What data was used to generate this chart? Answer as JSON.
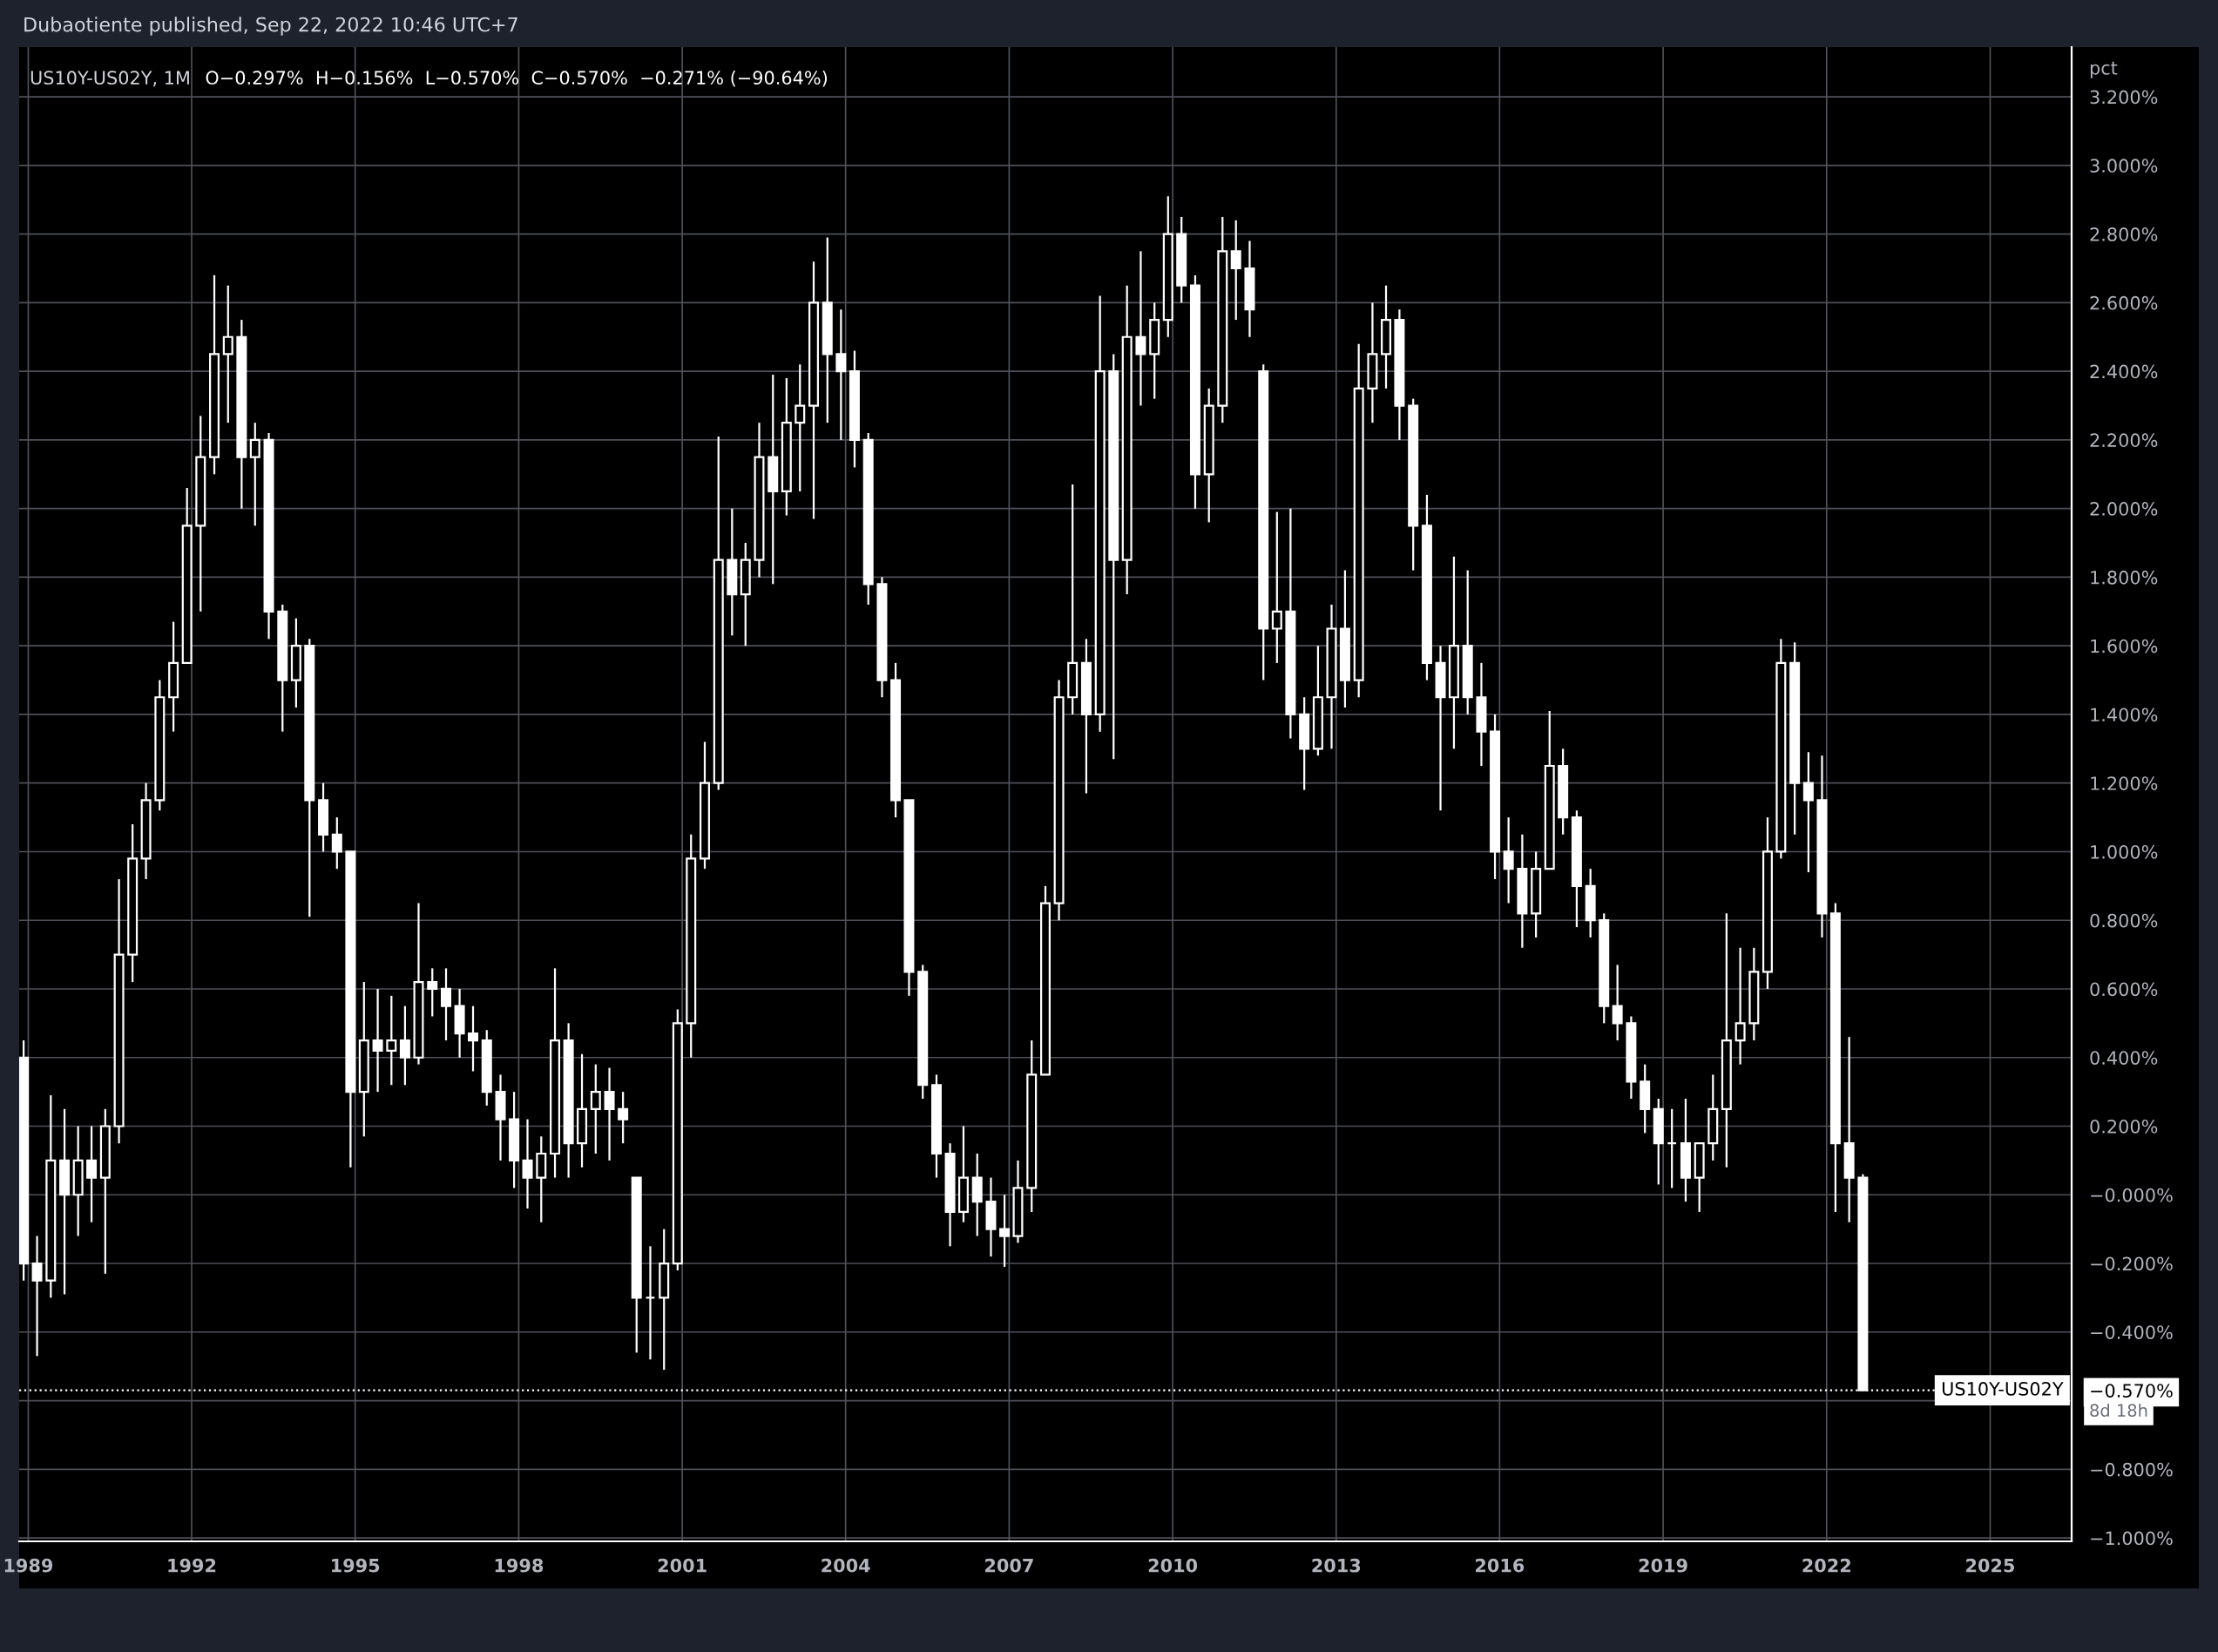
{
  "chart_data": {
    "type": "candlestick",
    "title": "US10Y-US02Y, 1M",
    "subtitle": "O−0.297%  H−0.156%  L−0.570%  C−0.570%  −0.271% (−90.64%)",
    "ylabel": "pct",
    "annotations": [
      "Dubaotiente published, Sep 22, 2022 10:46 UTC+7",
      "8d 18h"
    ],
    "color": "#ffffff",
    "x": [
      "1988-12",
      "1989-03",
      "1989-06",
      "1989-09",
      "1989-12",
      "1990-03",
      "1990-06",
      "1990-09",
      "1990-12",
      "1991-03",
      "1991-06",
      "1991-09",
      "1991-12",
      "1992-03",
      "1992-06",
      "1992-09",
      "1992-12",
      "1993-03",
      "1993-06",
      "1993-09",
      "1993-12",
      "1994-03",
      "1994-06",
      "1994-09",
      "1994-12",
      "1995-03",
      "1995-06",
      "1995-09",
      "1995-12",
      "1996-03",
      "1996-06",
      "1996-09",
      "1996-12",
      "1997-03",
      "1997-06",
      "1997-09",
      "1997-12",
      "1998-03",
      "1998-06",
      "1998-09",
      "1998-12",
      "1999-03",
      "1999-06",
      "1999-09",
      "1999-12",
      "2000-03",
      "2000-06",
      "2000-09",
      "2000-12",
      "2001-03",
      "2001-06",
      "2001-09",
      "2001-12",
      "2002-03",
      "2002-06",
      "2002-09",
      "2002-12",
      "2003-03",
      "2003-06",
      "2003-09",
      "2003-12",
      "2004-03",
      "2004-06",
      "2004-09",
      "2004-12",
      "2005-03",
      "2005-06",
      "2005-09",
      "2005-12",
      "2006-03",
      "2006-06",
      "2006-09",
      "2006-12",
      "2007-03",
      "2007-06",
      "2007-09",
      "2007-12",
      "2008-03",
      "2008-06",
      "2008-09",
      "2008-12",
      "2009-03",
      "2009-06",
      "2009-09",
      "2009-12",
      "2010-03",
      "2010-06",
      "2010-09",
      "2010-12",
      "2011-03",
      "2011-06",
      "2011-09",
      "2011-12",
      "2012-03",
      "2012-06",
      "2012-09",
      "2012-12",
      "2013-03",
      "2013-06",
      "2013-09",
      "2013-12",
      "2014-03",
      "2014-06",
      "2014-09",
      "2014-12",
      "2015-03",
      "2015-06",
      "2015-09",
      "2015-12",
      "2016-03",
      "2016-06",
      "2016-09",
      "2016-12",
      "2017-03",
      "2017-06",
      "2017-09",
      "2017-12",
      "2018-03",
      "2018-06",
      "2018-09",
      "2018-12",
      "2019-03",
      "2019-06",
      "2019-09",
      "2019-12",
      "2020-03",
      "2020-06",
      "2020-09",
      "2020-12",
      "2021-03",
      "2021-06",
      "2021-09",
      "2021-12",
      "2022-03",
      "2022-06",
      "2022-09"
    ],
    "ohlc": [
      [
        0.4,
        0.45,
        -0.25,
        -0.2
      ],
      [
        -0.2,
        -0.12,
        -0.47,
        -0.25
      ],
      [
        -0.25,
        0.29,
        -0.3,
        0.1
      ],
      [
        0.1,
        0.25,
        -0.29,
        0.0
      ],
      [
        0.0,
        0.2,
        -0.12,
        0.1
      ],
      [
        0.1,
        0.2,
        -0.08,
        0.05
      ],
      [
        0.05,
        0.25,
        -0.23,
        0.2
      ],
      [
        0.2,
        0.92,
        0.15,
        0.7
      ],
      [
        0.7,
        1.08,
        0.62,
        0.98
      ],
      [
        0.98,
        1.2,
        0.92,
        1.15
      ],
      [
        1.15,
        1.5,
        1.12,
        1.45
      ],
      [
        1.45,
        1.67,
        1.35,
        1.55
      ],
      [
        1.55,
        2.06,
        1.55,
        1.95
      ],
      [
        1.95,
        2.27,
        1.7,
        2.15
      ],
      [
        2.15,
        2.68,
        2.1,
        2.45
      ],
      [
        2.45,
        2.65,
        2.25,
        2.5
      ],
      [
        2.5,
        2.55,
        2.0,
        2.15
      ],
      [
        2.15,
        2.25,
        1.95,
        2.2
      ],
      [
        2.2,
        2.22,
        1.62,
        1.7
      ],
      [
        1.7,
        1.72,
        1.35,
        1.5
      ],
      [
        1.5,
        1.68,
        1.42,
        1.6
      ],
      [
        1.6,
        1.62,
        0.81,
        1.15
      ],
      [
        1.15,
        1.2,
        1.0,
        1.05
      ],
      [
        1.05,
        1.1,
        0.95,
        1.0
      ],
      [
        1.0,
        1.0,
        0.08,
        0.3
      ],
      [
        0.3,
        0.62,
        0.17,
        0.45
      ],
      [
        0.45,
        0.6,
        0.3,
        0.42
      ],
      [
        0.42,
        0.58,
        0.32,
        0.45
      ],
      [
        0.45,
        0.55,
        0.32,
        0.4
      ],
      [
        0.4,
        0.85,
        0.38,
        0.62
      ],
      [
        0.62,
        0.66,
        0.52,
        0.6
      ],
      [
        0.6,
        0.66,
        0.45,
        0.55
      ],
      [
        0.55,
        0.6,
        0.4,
        0.47
      ],
      [
        0.47,
        0.55,
        0.36,
        0.45
      ],
      [
        0.45,
        0.48,
        0.26,
        0.3
      ],
      [
        0.3,
        0.35,
        0.1,
        0.22
      ],
      [
        0.22,
        0.3,
        0.02,
        0.1
      ],
      [
        0.1,
        0.22,
        -0.04,
        0.05
      ],
      [
        0.05,
        0.17,
        -0.08,
        0.12
      ],
      [
        0.12,
        0.66,
        0.05,
        0.45
      ],
      [
        0.45,
        0.5,
        0.05,
        0.15
      ],
      [
        0.15,
        0.41,
        0.08,
        0.25
      ],
      [
        0.25,
        0.38,
        0.12,
        0.3
      ],
      [
        0.3,
        0.37,
        0.1,
        0.25
      ],
      [
        0.25,
        0.3,
        0.15,
        0.22
      ],
      [
        0.05,
        0.05,
        -0.46,
        -0.3
      ],
      [
        -0.3,
        -0.15,
        -0.48,
        -0.3
      ],
      [
        -0.3,
        -0.1,
        -0.51,
        -0.2
      ],
      [
        -0.2,
        0.54,
        -0.22,
        0.5
      ],
      [
        0.5,
        1.05,
        0.4,
        0.98
      ],
      [
        0.98,
        1.32,
        0.95,
        1.2
      ],
      [
        1.2,
        2.21,
        1.18,
        1.85
      ],
      [
        1.85,
        2.0,
        1.63,
        1.75
      ],
      [
        1.75,
        1.9,
        1.6,
        1.85
      ],
      [
        1.85,
        2.25,
        1.8,
        2.15
      ],
      [
        2.15,
        2.39,
        1.78,
        2.05
      ],
      [
        2.05,
        2.38,
        1.98,
        2.25
      ],
      [
        2.25,
        2.42,
        2.05,
        2.3
      ],
      [
        2.3,
        2.72,
        1.97,
        2.6
      ],
      [
        2.6,
        2.79,
        2.25,
        2.45
      ],
      [
        2.45,
        2.58,
        2.2,
        2.4
      ],
      [
        2.4,
        2.46,
        2.12,
        2.2
      ],
      [
        2.2,
        2.22,
        1.72,
        1.78
      ],
      [
        1.78,
        1.8,
        1.45,
        1.5
      ],
      [
        1.5,
        1.55,
        1.1,
        1.15
      ],
      [
        1.15,
        1.15,
        0.58,
        0.65
      ],
      [
        0.65,
        0.67,
        0.28,
        0.32
      ],
      [
        0.32,
        0.35,
        0.05,
        0.12
      ],
      [
        0.12,
        0.15,
        -0.15,
        -0.05
      ],
      [
        -0.05,
        0.2,
        -0.08,
        0.05
      ],
      [
        0.05,
        0.12,
        -0.12,
        -0.02
      ],
      [
        -0.02,
        0.05,
        -0.18,
        -0.1
      ],
      [
        -0.1,
        0.0,
        -0.21,
        -0.12
      ],
      [
        -0.12,
        0.1,
        -0.14,
        0.02
      ],
      [
        0.02,
        0.45,
        -0.05,
        0.35
      ],
      [
        0.35,
        0.9,
        0.35,
        0.85
      ],
      [
        0.85,
        1.5,
        0.8,
        1.45
      ],
      [
        1.45,
        2.07,
        1.4,
        1.55
      ],
      [
        1.55,
        1.62,
        1.17,
        1.4
      ],
      [
        1.4,
        2.62,
        1.35,
        2.4
      ],
      [
        2.4,
        2.45,
        1.27,
        1.85
      ],
      [
        1.85,
        2.65,
        1.75,
        2.5
      ],
      [
        2.5,
        2.75,
        2.3,
        2.45
      ],
      [
        2.45,
        2.6,
        2.32,
        2.55
      ],
      [
        2.55,
        2.91,
        2.5,
        2.8
      ],
      [
        2.8,
        2.85,
        2.6,
        2.65
      ],
      [
        2.65,
        2.68,
        2.0,
        2.1
      ],
      [
        2.1,
        2.35,
        1.96,
        2.3
      ],
      [
        2.3,
        2.85,
        2.25,
        2.75
      ],
      [
        2.75,
        2.84,
        2.55,
        2.7
      ],
      [
        2.7,
        2.78,
        2.5,
        2.58
      ],
      [
        2.4,
        2.42,
        1.5,
        1.65
      ],
      [
        1.65,
        1.99,
        1.55,
        1.7
      ],
      [
        1.7,
        2.0,
        1.33,
        1.4
      ],
      [
        1.4,
        1.45,
        1.18,
        1.3
      ],
      [
        1.3,
        1.6,
        1.28,
        1.45
      ],
      [
        1.45,
        1.72,
        1.3,
        1.65
      ],
      [
        1.65,
        1.82,
        1.42,
        1.5
      ],
      [
        1.5,
        2.48,
        1.45,
        2.35
      ],
      [
        2.35,
        2.6,
        2.25,
        2.45
      ],
      [
        2.45,
        2.65,
        2.35,
        2.55
      ],
      [
        2.55,
        2.58,
        2.2,
        2.3
      ],
      [
        2.3,
        2.32,
        1.82,
        1.95
      ],
      [
        1.95,
        2.04,
        1.5,
        1.55
      ],
      [
        1.55,
        1.6,
        1.12,
        1.45
      ],
      [
        1.45,
        1.86,
        1.3,
        1.6
      ],
      [
        1.6,
        1.82,
        1.4,
        1.45
      ],
      [
        1.45,
        1.55,
        1.25,
        1.35
      ],
      [
        1.35,
        1.4,
        0.92,
        1.0
      ],
      [
        1.0,
        1.1,
        0.85,
        0.95
      ],
      [
        0.95,
        1.05,
        0.72,
        0.82
      ],
      [
        0.82,
        1.0,
        0.75,
        0.95
      ],
      [
        0.95,
        1.41,
        0.95,
        1.25
      ],
      [
        1.25,
        1.3,
        1.05,
        1.1
      ],
      [
        1.1,
        1.12,
        0.78,
        0.9
      ],
      [
        0.9,
        0.95,
        0.75,
        0.8
      ],
      [
        0.8,
        0.82,
        0.5,
        0.55
      ],
      [
        0.55,
        0.67,
        0.45,
        0.5
      ],
      [
        0.5,
        0.52,
        0.28,
        0.33
      ],
      [
        0.33,
        0.38,
        0.18,
        0.25
      ],
      [
        0.25,
        0.28,
        0.03,
        0.15
      ],
      [
        0.15,
        0.25,
        0.02,
        0.15
      ],
      [
        0.15,
        0.28,
        -0.02,
        0.05
      ],
      [
        0.05,
        0.15,
        -0.05,
        0.15
      ],
      [
        0.15,
        0.35,
        0.1,
        0.25
      ],
      [
        0.25,
        0.82,
        0.08,
        0.45
      ],
      [
        0.45,
        0.72,
        0.38,
        0.5
      ],
      [
        0.5,
        0.72,
        0.45,
        0.65
      ],
      [
        0.65,
        1.1,
        0.6,
        1.0
      ],
      [
        1.0,
        1.62,
        0.98,
        1.55
      ],
      [
        1.55,
        1.61,
        1.05,
        1.2
      ],
      [
        1.2,
        1.29,
        0.94,
        1.15
      ],
      [
        1.15,
        1.28,
        0.75,
        0.82
      ],
      [
        0.82,
        0.85,
        -0.05,
        0.15
      ],
      [
        0.15,
        0.46,
        -0.08,
        0.05
      ],
      [
        0.05,
        0.06,
        -0.57,
        -0.57
      ]
    ],
    "xlim": [
      "1988-11",
      "2026-07"
    ],
    "ylim": [
      -1.01,
      3.345
    ],
    "xticks": [
      "1989",
      "1992",
      "1995",
      "1998",
      "2001",
      "2004",
      "2007",
      "2010",
      "2013",
      "2016",
      "2019",
      "2022",
      "2025"
    ],
    "yticks": [
      {
        "value": 3.2,
        "label": "3.200%"
      },
      {
        "value": 3.0,
        "label": "3.000%"
      },
      {
        "value": 2.8,
        "label": "2.800%"
      },
      {
        "value": 2.6,
        "label": "2.600%"
      },
      {
        "value": 2.4,
        "label": "2.400%"
      },
      {
        "value": 2.2,
        "label": "2.200%"
      },
      {
        "value": 2.0,
        "label": "2.000%"
      },
      {
        "value": 1.8,
        "label": "1.800%"
      },
      {
        "value": 1.6,
        "label": "1.600%"
      },
      {
        "value": 1.4,
        "label": "1.400%"
      },
      {
        "value": 1.2,
        "label": "1.200%"
      },
      {
        "value": 1.0,
        "label": "1.000%"
      },
      {
        "value": 0.8,
        "label": "0.800%"
      },
      {
        "value": 0.6,
        "label": "0.600%"
      },
      {
        "value": 0.4,
        "label": "0.400%"
      },
      {
        "value": 0.2,
        "label": "0.200%"
      },
      {
        "value": 0,
        "label": "−0.000%"
      },
      {
        "value": -0.2,
        "label": "−0.200%"
      },
      {
        "value": -0.4,
        "label": "−0.400%"
      },
      {
        "value": -0.57,
        "label": "−0.570%"
      },
      {
        "value": -0.6,
        "label": null
      },
      {
        "value": -0.8,
        "label": "−0.800%"
      },
      {
        "value": -1.0,
        "label": "−1.000%"
      }
    ],
    "ref_lines": [
      {
        "axis": "y",
        "value": -0.57,
        "label": "US10Y-US02Y",
        "color": "#ffffff",
        "line_style": "dotted"
      }
    ],
    "grid": true
  }
}
